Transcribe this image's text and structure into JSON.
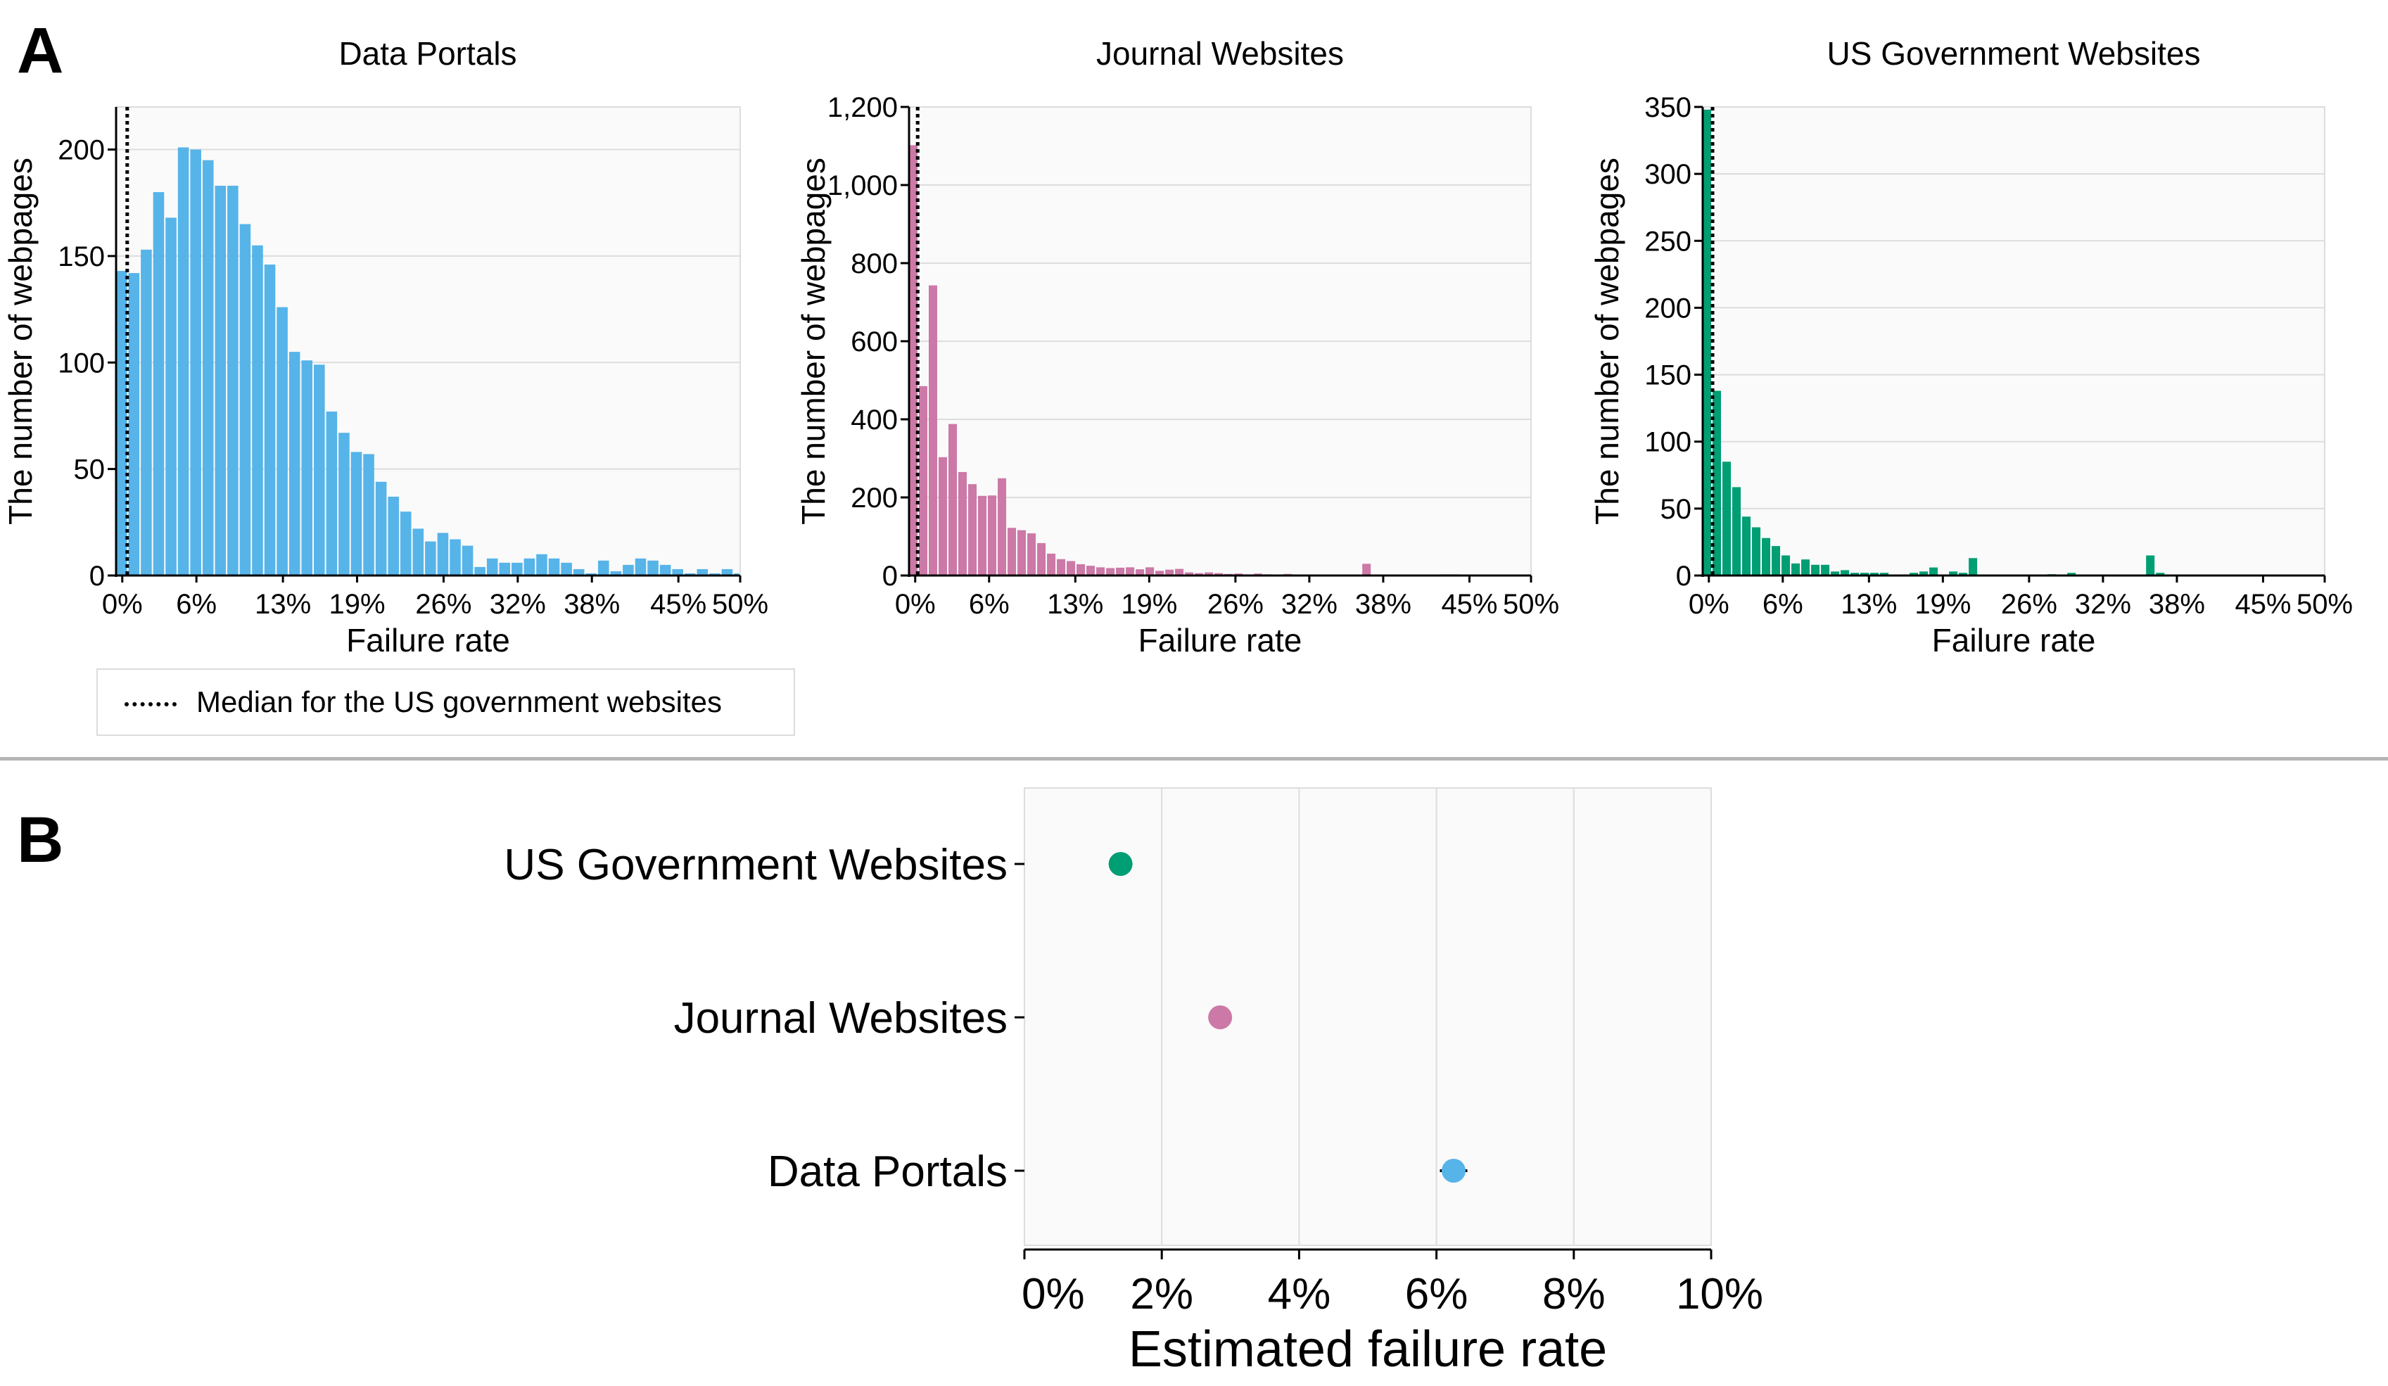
{
  "panels": {
    "a": "A",
    "b": "B"
  },
  "legend": {
    "label": "Median for the US government websites"
  },
  "colors": {
    "data_portals": "#56b4e9",
    "journal": "#cc79a7",
    "government": "#009e73",
    "plot_bg": "#fafafa",
    "grid": "#dddddd"
  },
  "chart_data": [
    {
      "type": "bar",
      "title": "Data Portals",
      "xlabel": "Failure rate",
      "ylabel": "The number of webpages",
      "xlim": [
        -0.5,
        50
      ],
      "ylim": [
        0,
        220
      ],
      "bin_width": 1,
      "x_start": -0.5,
      "xticks": [
        0,
        6,
        13,
        19,
        26,
        32,
        38,
        45,
        50
      ],
      "xtick_labels": [
        "0%",
        "6%",
        "13%",
        "19%",
        "26%",
        "32%",
        "38%",
        "45%",
        "50%"
      ],
      "yticks": [
        0,
        50,
        100,
        150,
        200
      ],
      "ytick_labels": [
        "0",
        "50",
        "100",
        "150",
        "200"
      ],
      "color": "#56b4e9",
      "median_line_x": 0.4,
      "values": [
        143,
        142,
        153,
        180,
        168,
        201,
        200,
        195,
        183,
        183,
        165,
        155,
        146,
        126,
        105,
        101,
        99,
        77,
        67,
        58,
        57,
        44,
        37,
        30,
        22,
        16,
        20,
        17,
        14,
        4,
        8,
        6,
        6,
        8,
        10,
        8,
        6,
        3,
        1,
        7,
        2,
        5,
        8,
        7,
        5,
        3,
        1,
        3,
        1,
        3,
        1,
        5,
        3,
        4,
        1,
        2,
        1
      ]
    },
    {
      "type": "bar",
      "title": "Journal Websites",
      "xlabel": "Failure rate",
      "ylabel": "The number of webpages",
      "xlim": [
        -0.5,
        50
      ],
      "ylim": [
        0,
        1200
      ],
      "bin_width": 0.8,
      "x_start": -0.5,
      "xticks": [
        0,
        6,
        13,
        19,
        26,
        32,
        38,
        45,
        50
      ],
      "xtick_labels": [
        "0%",
        "6%",
        "13%",
        "19%",
        "26%",
        "32%",
        "38%",
        "45%",
        "50%"
      ],
      "yticks": [
        0,
        200,
        400,
        600,
        800,
        1000,
        1200
      ],
      "ytick_labels": [
        "0",
        "200",
        "400",
        "600",
        "800",
        "1,000",
        "1,200"
      ],
      "color": "#cc79a7",
      "median_line_x": 0.2,
      "values": [
        1102,
        485,
        743,
        303,
        388,
        265,
        234,
        204,
        205,
        249,
        122,
        116,
        108,
        83,
        56,
        42,
        37,
        29,
        25,
        21,
        19,
        20,
        21,
        16,
        21,
        12,
        15,
        17,
        8,
        6,
        8,
        6,
        4,
        5,
        3,
        5,
        3,
        2,
        4,
        1,
        2,
        2,
        1,
        1,
        1,
        1,
        30,
        0,
        1,
        0,
        0,
        0,
        0,
        0,
        3,
        3,
        0,
        0,
        0,
        0,
        0,
        0
      ]
    },
    {
      "type": "bar",
      "title": "US Government Websites",
      "xlabel": "Failure rate",
      "ylabel": "The number of webpages",
      "xlim": [
        -0.5,
        50
      ],
      "ylim": [
        0,
        350
      ],
      "bin_width": 0.8,
      "x_start": -0.5,
      "xticks": [
        0,
        6,
        13,
        19,
        26,
        32,
        38,
        45,
        50
      ],
      "xtick_labels": [
        "0%",
        "6%",
        "13%",
        "19%",
        "26%",
        "32%",
        "38%",
        "45%",
        "50%"
      ],
      "yticks": [
        0,
        50,
        100,
        150,
        200,
        250,
        300,
        350
      ],
      "ytick_labels": [
        "0",
        "50",
        "100",
        "150",
        "200",
        "250",
        "300",
        "350"
      ],
      "color": "#009e73",
      "median_line_x": 0.3,
      "values": [
        348,
        138,
        85,
        66,
        44,
        36,
        28,
        22,
        15,
        9,
        12,
        8,
        8,
        3,
        4,
        2,
        2,
        2,
        2,
        0,
        0,
        2,
        3,
        6,
        0,
        3,
        2,
        13,
        0,
        0,
        0,
        0,
        0,
        0,
        0,
        1,
        0,
        2,
        0,
        0,
        0,
        0,
        0,
        0,
        0,
        15,
        2,
        0,
        0,
        0,
        0,
        0,
        0,
        0,
        0,
        0,
        0,
        0,
        0,
        0,
        0,
        0
      ]
    },
    {
      "type": "scatter",
      "xlabel": "Estimated failure rate",
      "ylabel": "",
      "xlim": [
        0,
        10
      ],
      "xticks": [
        0,
        2,
        4,
        6,
        8,
        10
      ],
      "xtick_labels": [
        "0%",
        "2%",
        "4%",
        "6%",
        "8%",
        "10%"
      ],
      "categories": [
        "US Government Websites",
        "Journal Websites",
        "Data Portals"
      ],
      "values": [
        1.4,
        2.85,
        6.25
      ],
      "errors": [
        0.05,
        0.05,
        0.2
      ],
      "colors": [
        "#009e73",
        "#cc79a7",
        "#56b4e9"
      ],
      "grid": true
    }
  ]
}
